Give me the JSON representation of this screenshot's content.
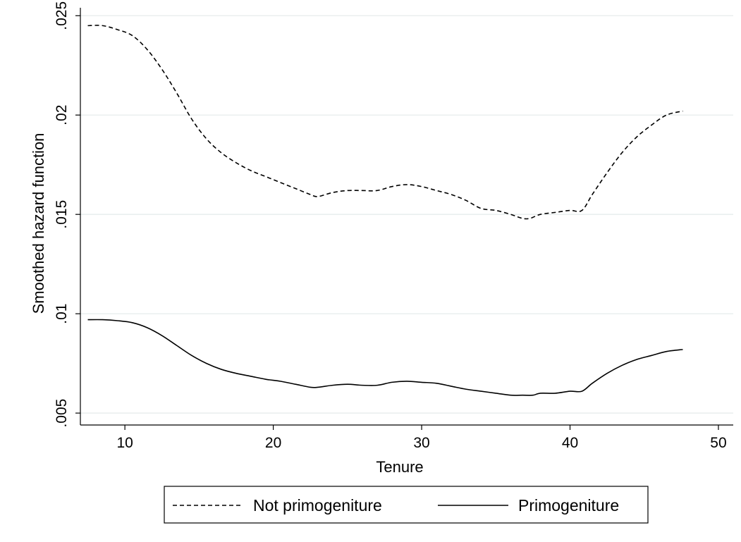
{
  "chart_data": {
    "type": "line",
    "xlabel": "Tenure",
    "ylabel": "Smoothed hazard function",
    "xlim": [
      7,
      51
    ],
    "ylim": [
      0.0044,
      0.0254
    ],
    "x_ticks": [
      {
        "value": 10,
        "label": "10"
      },
      {
        "value": 20,
        "label": "20"
      },
      {
        "value": 30,
        "label": "30"
      },
      {
        "value": 40,
        "label": "40"
      },
      {
        "value": 50,
        "label": "50"
      }
    ],
    "y_ticks": [
      {
        "value": 0.005,
        "label": ".005"
      },
      {
        "value": 0.01,
        "label": ".01"
      },
      {
        "value": 0.015,
        "label": ".015"
      },
      {
        "value": 0.02,
        "label": ".02"
      },
      {
        "value": 0.025,
        "label": ".025"
      }
    ],
    "grid": "horizontal",
    "legend_position": "bottom",
    "series": [
      {
        "name": "Not primogeniture",
        "style": "dashed",
        "color": "#000000",
        "points": [
          [
            7.5,
            0.0245
          ],
          [
            8.5,
            0.0245
          ],
          [
            9.5,
            0.0243
          ],
          [
            10.5,
            0.024
          ],
          [
            11.5,
            0.0233
          ],
          [
            12.5,
            0.0223
          ],
          [
            13.5,
            0.0211
          ],
          [
            14.5,
            0.0198
          ],
          [
            15.5,
            0.0188
          ],
          [
            16.5,
            0.0181
          ],
          [
            17.5,
            0.0176
          ],
          [
            18.5,
            0.0172
          ],
          [
            19.5,
            0.0169
          ],
          [
            20.5,
            0.0166
          ],
          [
            21.5,
            0.0163
          ],
          [
            22.5,
            0.016
          ],
          [
            23,
            0.0159
          ],
          [
            24,
            0.0161
          ],
          [
            25,
            0.0162
          ],
          [
            26,
            0.0162
          ],
          [
            27,
            0.0162
          ],
          [
            28,
            0.0164
          ],
          [
            29,
            0.0165
          ],
          [
            30,
            0.0164
          ],
          [
            31,
            0.0162
          ],
          [
            32,
            0.016
          ],
          [
            33,
            0.0157
          ],
          [
            34,
            0.0153
          ],
          [
            35,
            0.0152
          ],
          [
            36,
            0.015
          ],
          [
            36.8,
            0.0148
          ],
          [
            37.3,
            0.0148
          ],
          [
            38,
            0.015
          ],
          [
            39,
            0.0151
          ],
          [
            40,
            0.0152
          ],
          [
            40.8,
            0.0152
          ],
          [
            41.5,
            0.016
          ],
          [
            42.5,
            0.0171
          ],
          [
            43.5,
            0.0181
          ],
          [
            44.5,
            0.0189
          ],
          [
            45.5,
            0.0195
          ],
          [
            46.5,
            0.02
          ],
          [
            47.6,
            0.0202
          ]
        ]
      },
      {
        "name": "Primogeniture",
        "style": "solid",
        "color": "#000000",
        "points": [
          [
            7.5,
            0.0097
          ],
          [
            8.5,
            0.0097
          ],
          [
            9.5,
            0.00965
          ],
          [
            10.5,
            0.00955
          ],
          [
            11.5,
            0.0093
          ],
          [
            12.5,
            0.0089
          ],
          [
            13.5,
            0.0084
          ],
          [
            14.5,
            0.0079
          ],
          [
            15.5,
            0.0075
          ],
          [
            16.5,
            0.0072
          ],
          [
            17.5,
            0.007
          ],
          [
            18.5,
            0.00685
          ],
          [
            19.5,
            0.0067
          ],
          [
            20.5,
            0.0066
          ],
          [
            21.5,
            0.00645
          ],
          [
            22.5,
            0.0063
          ],
          [
            23,
            0.0063
          ],
          [
            24,
            0.0064
          ],
          [
            25,
            0.00645
          ],
          [
            26,
            0.0064
          ],
          [
            27,
            0.0064
          ],
          [
            28,
            0.00655
          ],
          [
            29,
            0.0066
          ],
          [
            30,
            0.00655
          ],
          [
            31,
            0.0065
          ],
          [
            32,
            0.00635
          ],
          [
            33,
            0.0062
          ],
          [
            34,
            0.0061
          ],
          [
            35,
            0.006
          ],
          [
            36,
            0.0059
          ],
          [
            36.8,
            0.0059
          ],
          [
            37.5,
            0.0059
          ],
          [
            38,
            0.006
          ],
          [
            39,
            0.006
          ],
          [
            40,
            0.0061
          ],
          [
            40.8,
            0.0061
          ],
          [
            41.5,
            0.0065
          ],
          [
            42.5,
            0.007
          ],
          [
            43.5,
            0.0074
          ],
          [
            44.5,
            0.0077
          ],
          [
            45.5,
            0.0079
          ],
          [
            46.5,
            0.0081
          ],
          [
            47.6,
            0.0082
          ]
        ]
      }
    ]
  }
}
